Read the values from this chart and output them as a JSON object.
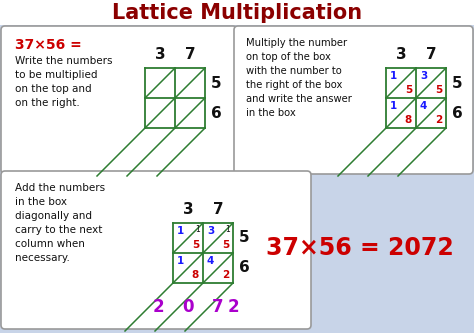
{
  "title": "Lattice Multiplication",
  "title_color": "#8B0000",
  "bg_color": "#c8d4e8",
  "box_bg": "white",
  "grid_color": "#2e7d32",
  "red": "#cc0000",
  "blue": "#1a1aff",
  "purple": "#aa00cc",
  "black": "#111111",
  "panel1_line1": "37×56 =",
  "panel1_body": "Write the numbers\nto be multiplied\non the top and\non the right.",
  "panel2_body": "Multiply the number\non top of the box\nwith the number to\nthe right of the box\nand write the answer\nin the box",
  "panel3_body": "Add the numbers\nin the box\ndiagonally and\ncarry to the next\ncolumn when\nnecessary.",
  "panel4_text": "37×56 = 2072",
  "top_nums": [
    "3",
    "7"
  ],
  "right_nums": [
    "5",
    "6"
  ],
  "cell_data": [
    [
      [
        "1",
        "5"
      ],
      [
        "3",
        "5"
      ]
    ],
    [
      [
        "1",
        "8"
      ],
      [
        "4",
        "2"
      ]
    ]
  ],
  "diag_result": [
    "2",
    "0",
    "7",
    "2"
  ]
}
